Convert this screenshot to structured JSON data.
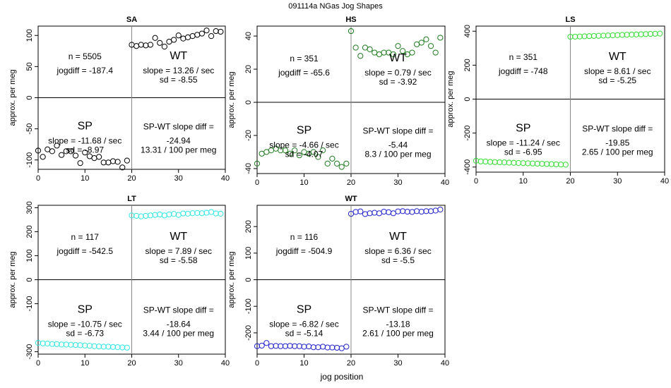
{
  "figure": {
    "title": "091114a    NGas Jog Shapes",
    "xlabel": "jog position",
    "ylabel": "approx. per meg"
  },
  "chart_data": [
    {
      "type": "scatter",
      "title": "SA",
      "color": "#000000",
      "xlim": [
        0,
        40
      ],
      "ylim": [
        -115,
        115
      ],
      "xticks": [
        0,
        10,
        20,
        30,
        40
      ],
      "yticks": [
        -100,
        -50,
        0,
        50,
        100
      ],
      "sp_x": [
        0,
        1,
        2,
        3,
        4,
        5,
        6,
        7,
        8,
        9,
        10,
        11,
        12,
        13,
        14,
        15,
        16,
        17,
        18,
        19
      ],
      "sp_y": [
        -85,
        -95,
        -83,
        -86,
        -77,
        -92,
        -86,
        -86,
        -93,
        -105,
        -88,
        -94,
        -97,
        -95,
        -104,
        -104,
        -102,
        -103,
        -112,
        -101
      ],
      "wt_x": [
        20,
        21,
        22,
        23,
        24,
        25,
        26,
        27,
        28,
        29,
        30,
        31,
        32,
        33,
        34,
        35,
        36,
        37,
        38,
        39
      ],
      "wt_y": [
        85,
        83,
        85,
        84,
        85,
        96,
        88,
        82,
        90,
        93,
        100,
        95,
        97,
        99,
        101,
        103,
        108,
        99,
        107,
        106
      ],
      "n": "n = 5505",
      "jogdiff": "jogdiff = -187.4",
      "wt_label": "WT",
      "wt_slope": "slope = 13.26 / sec",
      "wt_sd": "sd = -8.55",
      "sp_label": "SP",
      "sp_slope": "slope = -11.68 / sec",
      "sp_sd": "sd = -8.97",
      "diff_label": "SP-WT slope diff =",
      "diff_value": "-24.94",
      "diff_per": "13.31 / 100 per meg"
    },
    {
      "type": "scatter",
      "title": "HS",
      "color": "#1e7b1e",
      "xlim": [
        0,
        40
      ],
      "ylim": [
        -43,
        46
      ],
      "xticks": [
        0,
        10,
        20,
        30,
        40
      ],
      "yticks": [
        -40,
        -20,
        0,
        20,
        40
      ],
      "sp_x": [
        0,
        1,
        2,
        3,
        4,
        5,
        6,
        7,
        8,
        9,
        10,
        11,
        12,
        13,
        14,
        15,
        16,
        17,
        18,
        19
      ],
      "sp_y": [
        -37,
        -31,
        -30,
        -29,
        -28,
        -29,
        -29,
        -31,
        -29,
        -32,
        -30,
        -31,
        -30,
        -33,
        -29,
        -37,
        -34,
        -37,
        -39,
        -37
      ],
      "wt_x": [
        20,
        21,
        22,
        23,
        24,
        25,
        26,
        27,
        28,
        29,
        30,
        31,
        32,
        33,
        34,
        35,
        36,
        37,
        38,
        39
      ],
      "wt_y": [
        43,
        33,
        28,
        33,
        32,
        30,
        29,
        30,
        30,
        29,
        34,
        31,
        29,
        30,
        35,
        36,
        38,
        34,
        30,
        39
      ],
      "n": "n = 351",
      "jogdiff": "jogdiff = -65.6",
      "wt_label": "WT",
      "wt_slope": "slope = 0.79 / sec",
      "wt_sd": "sd = -3.92",
      "sp_label": "SP",
      "sp_slope": "slope = -4.66 / sec",
      "sp_sd": "sd = -4.07",
      "diff_label": "SP-WT slope diff =",
      "diff_value": "-5.44",
      "diff_per": "8.3 / 100 per meg"
    },
    {
      "type": "scatter",
      "title": "LS",
      "color": "#33dd33",
      "xlim": [
        0,
        40
      ],
      "ylim": [
        -430,
        430
      ],
      "xticks": [
        0,
        10,
        20,
        30,
        40
      ],
      "yticks": [
        -400,
        -200,
        0,
        200,
        400
      ],
      "sp_x": [
        0,
        1,
        2,
        3,
        4,
        5,
        6,
        7,
        8,
        9,
        10,
        11,
        12,
        13,
        14,
        15,
        16,
        17,
        18,
        19
      ],
      "sp_y": [
        -363,
        -367,
        -368,
        -370,
        -371,
        -372,
        -373,
        -374,
        -375,
        -376,
        -377,
        -378,
        -379,
        -380,
        -381,
        -382,
        -383,
        -384,
        -385,
        -386
      ],
      "wt_x": [
        20,
        21,
        22,
        23,
        24,
        25,
        26,
        27,
        28,
        29,
        30,
        31,
        32,
        33,
        34,
        35,
        36,
        37,
        38,
        39
      ],
      "wt_y": [
        367,
        368,
        369,
        370,
        371,
        372,
        373,
        374,
        375,
        376,
        377,
        378,
        379,
        380,
        381,
        382,
        383,
        384,
        385,
        386
      ],
      "n": "n = 351",
      "jogdiff": "jogdiff = -748",
      "wt_label": "WT",
      "wt_slope": "slope = 8.61 / sec",
      "wt_sd": "sd = -5.25",
      "sp_label": "SP",
      "sp_slope": "slope = -11.24 / sec",
      "sp_sd": "sd = -6.95",
      "diff_label": "SP-WT slope diff =",
      "diff_value": "-19.85",
      "diff_per": "2.65 / 100 per meg"
    },
    {
      "type": "scatter",
      "title": "LT",
      "color": "#33e5e5",
      "xlim": [
        0,
        40
      ],
      "ylim": [
        -310,
        310
      ],
      "xticks": [
        0,
        10,
        20,
        30,
        40
      ],
      "yticks": [
        -300,
        -100,
        0,
        100,
        200,
        300
      ],
      "sp_x": [
        0,
        1,
        2,
        3,
        4,
        5,
        6,
        7,
        8,
        9,
        10,
        11,
        12,
        13,
        14,
        15,
        16,
        17,
        18,
        19
      ],
      "sp_y": [
        -263,
        -265,
        -266,
        -268,
        -268,
        -270,
        -270,
        -271,
        -272,
        -273,
        -274,
        -275,
        -277,
        -278,
        -279,
        -279,
        -280,
        -281,
        -282,
        -283
      ],
      "wt_x": [
        20,
        21,
        22,
        23,
        24,
        25,
        26,
        27,
        28,
        29,
        30,
        31,
        32,
        33,
        34,
        35,
        36,
        37,
        38,
        39
      ],
      "wt_y": [
        268,
        266,
        264,
        266,
        268,
        270,
        272,
        268,
        272,
        274,
        270,
        276,
        275,
        277,
        278,
        277,
        279,
        282,
        276,
        275
      ],
      "n": "n = 117",
      "jogdiff": "jogdiff = -542.5",
      "wt_label": "WT",
      "wt_slope": "slope = 7.89 / sec",
      "wt_sd": "sd = -5.58",
      "sp_label": "SP",
      "sp_slope": "slope = -10.75 / sec",
      "sp_sd": "sd = -6.73",
      "diff_label": "SP-WT slope diff =",
      "diff_value": "-18.64",
      "diff_per": "3.44 / 100 per meg"
    },
    {
      "type": "scatter",
      "title": "WT",
      "color": "#2626cc",
      "xlim": [
        0,
        40
      ],
      "ylim": [
        -280,
        280
      ],
      "xticks": [
        0,
        10,
        20,
        30,
        40
      ],
      "yticks": [
        -200,
        -100,
        0,
        100,
        200
      ],
      "sp_x": [
        0,
        1,
        2,
        3,
        4,
        5,
        6,
        7,
        8,
        9,
        10,
        11,
        12,
        13,
        14,
        15,
        16,
        17,
        18,
        19
      ],
      "sp_y": [
        -250,
        -248,
        -238,
        -250,
        -249,
        -250,
        -250,
        -249,
        -250,
        -250,
        -252,
        -251,
        -254,
        -254,
        -252,
        -255,
        -255,
        -256,
        -258,
        -252
      ],
      "wt_x": [
        20,
        21,
        22,
        23,
        24,
        25,
        26,
        27,
        28,
        29,
        30,
        31,
        32,
        33,
        34,
        35,
        36,
        37,
        38,
        39
      ],
      "wt_y": [
        248,
        255,
        257,
        247,
        250,
        252,
        250,
        256,
        254,
        250,
        257,
        258,
        256,
        255,
        258,
        256,
        258,
        258,
        260,
        264
      ],
      "n": "n = 116",
      "jogdiff": "jogdiff = -504.9",
      "wt_label": "WT",
      "wt_slope": "slope = 6.36 / sec",
      "wt_sd": "sd = -5.5",
      "sp_label": "SP",
      "sp_slope": "slope = -6.82 / sec",
      "sp_sd": "sd = -5.14",
      "diff_label": "SP-WT slope diff =",
      "diff_value": "-13.18",
      "diff_per": "2.61 / 100 per meg"
    }
  ]
}
